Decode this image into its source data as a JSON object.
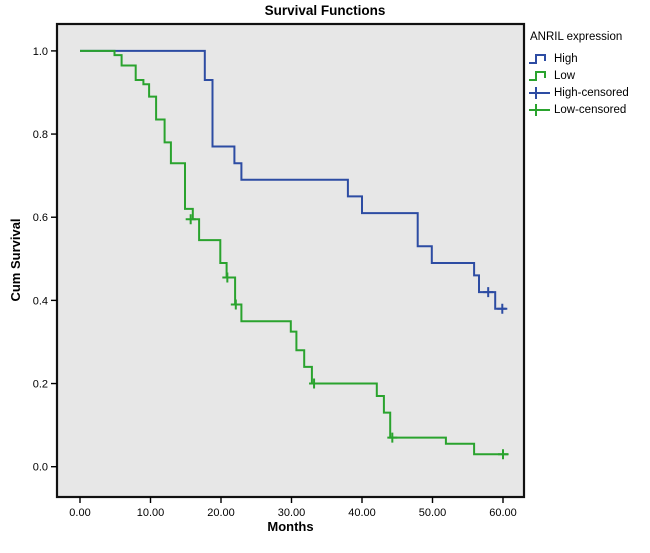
{
  "figure": {
    "title": "Survival Functions",
    "plot_bg": "#e7e7e7",
    "frame_color": "#111111"
  },
  "axes": {
    "xlabel": "Months",
    "ylabel": "Cum Survival",
    "x_tick_labels": [
      "0.00",
      "10.00",
      "20.00",
      "30.00",
      "40.00",
      "50.00",
      "60.00"
    ],
    "y_tick_labels": [
      "0.0",
      "0.2",
      "0.4",
      "0.6",
      "0.8",
      "1.0"
    ]
  },
  "legend": {
    "title": "ANRIL expression",
    "items": [
      {
        "label": "High",
        "type": "step-line",
        "color": "#2d4ca3"
      },
      {
        "label": "Low",
        "type": "step-line",
        "color": "#2aa32e"
      },
      {
        "label": "High-censored",
        "type": "censor-cross",
        "color": "#2d4ca3"
      },
      {
        "label": "Low-censored",
        "type": "censor-cross",
        "color": "#2aa32e"
      }
    ]
  },
  "chart_data": {
    "type": "line",
    "subtype": "kaplan-meier-step",
    "title": "Survival Functions",
    "xlabel": "Months",
    "ylabel": "Cum Survival",
    "x_ticks": [
      0,
      10,
      20,
      30,
      40,
      50,
      60
    ],
    "y_ticks": [
      0.0,
      0.2,
      0.4,
      0.6,
      0.8,
      1.0
    ],
    "xlim": [
      -3.3,
      63.0
    ],
    "ylim": [
      -0.07,
      1.06
    ],
    "grid": false,
    "legend_position": "right",
    "legend_title": "ANRIL expression",
    "series": [
      {
        "name": "High",
        "color": "#2d4ca3",
        "steps": [
          [
            0,
            1.0
          ],
          [
            17.7,
            0.93
          ],
          [
            18.8,
            0.77
          ],
          [
            21.9,
            0.73
          ],
          [
            22.9,
            0.69
          ],
          [
            38.0,
            0.65
          ],
          [
            40.0,
            0.61
          ],
          [
            47.9,
            0.53
          ],
          [
            49.9,
            0.49
          ],
          [
            55.9,
            0.46
          ],
          [
            56.6,
            0.42
          ],
          [
            58.9,
            0.38
          ]
        ],
        "end_time": 60.4,
        "censored": [
          [
            57.9,
            0.42
          ],
          [
            59.9,
            0.38
          ]
        ]
      },
      {
        "name": "Low",
        "color": "#2aa32e",
        "steps": [
          [
            0,
            1.0
          ],
          [
            4.9,
            0.99
          ],
          [
            5.9,
            0.965
          ],
          [
            7.9,
            0.93
          ],
          [
            9.0,
            0.92
          ],
          [
            9.8,
            0.89
          ],
          [
            10.8,
            0.835
          ],
          [
            12.0,
            0.78
          ],
          [
            12.9,
            0.73
          ],
          [
            14.9,
            0.62
          ],
          [
            16.0,
            0.595
          ],
          [
            16.9,
            0.545
          ],
          [
            19.9,
            0.49
          ],
          [
            20.8,
            0.455
          ],
          [
            22.0,
            0.39
          ],
          [
            22.9,
            0.35
          ],
          [
            29.9,
            0.325
          ],
          [
            30.7,
            0.28
          ],
          [
            31.8,
            0.24
          ],
          [
            32.9,
            0.2
          ],
          [
            42.1,
            0.17
          ],
          [
            43.1,
            0.13
          ],
          [
            44.0,
            0.07
          ],
          [
            51.9,
            0.055
          ],
          [
            55.9,
            0.03
          ]
        ],
        "end_time": 60.8,
        "censored": [
          [
            15.7,
            0.595
          ],
          [
            20.9,
            0.455
          ],
          [
            22.1,
            0.39
          ],
          [
            33.2,
            0.2
          ],
          [
            44.3,
            0.07
          ],
          [
            60.0,
            0.03
          ]
        ]
      }
    ]
  }
}
